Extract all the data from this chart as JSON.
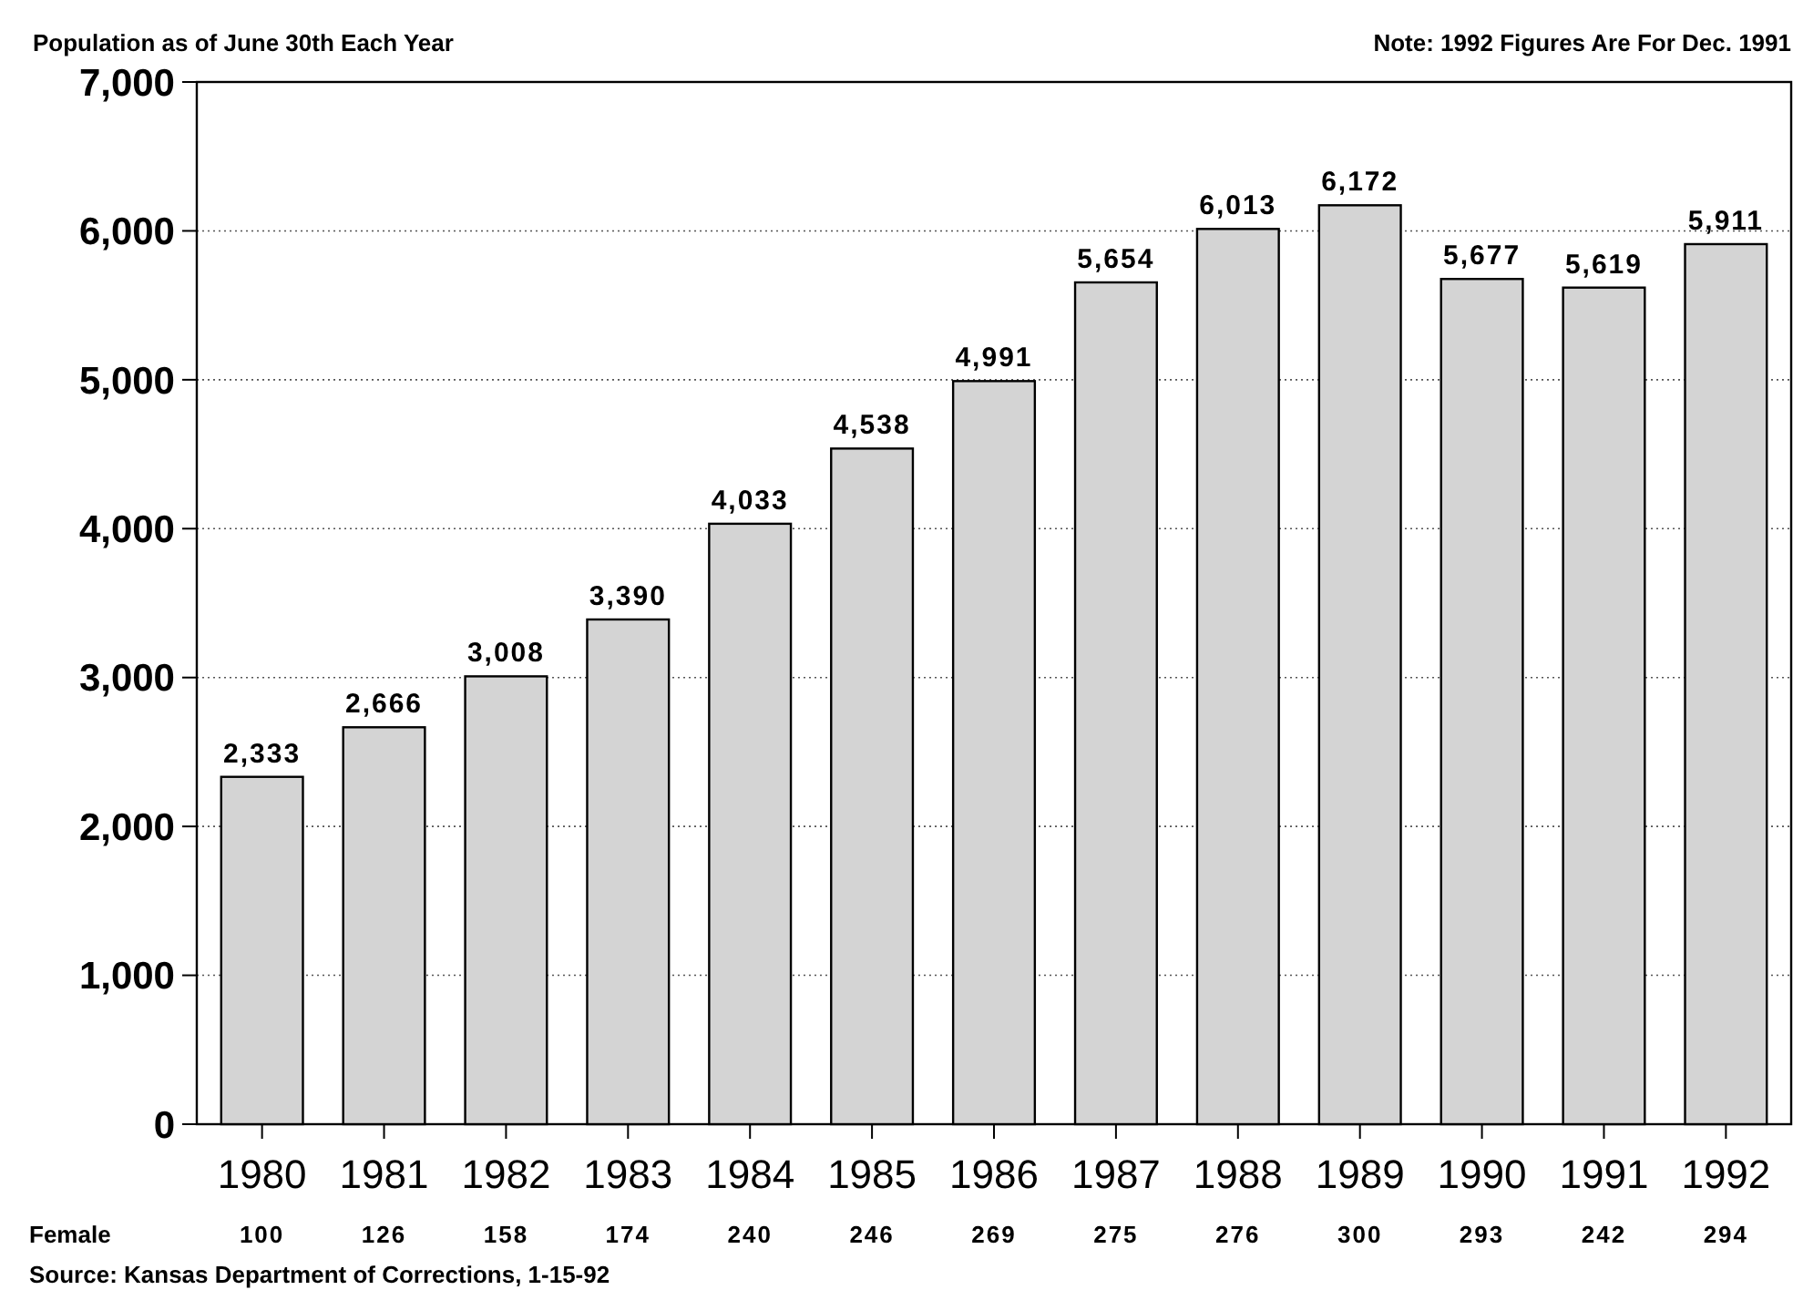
{
  "chart_data": {
    "type": "bar",
    "title": "Population as of June 30th Each Year",
    "categories": [
      "1980",
      "1981",
      "1982",
      "1983",
      "1984",
      "1985",
      "1986",
      "1987",
      "1988",
      "1989",
      "1990",
      "1991",
      "1992"
    ],
    "series": [
      {
        "color": "#d4d4d4",
        "values": [
          2333,
          2666,
          3008,
          3390,
          4033,
          4538,
          4991,
          5654,
          6013,
          6172,
          5677,
          5619,
          5911
        ],
        "value_labels": [
          "2,333",
          "2,666",
          "3,008",
          "3,390",
          "4,033",
          "4,538",
          "4,991",
          "5,654",
          "6,013",
          "6,172",
          "5,677",
          "5,619",
          "5,911"
        ]
      }
    ],
    "ylim": [
      0,
      7000
    ],
    "yticks": [
      {
        "value": 0,
        "label": "0"
      },
      {
        "value": 1000,
        "label": "1,000"
      },
      {
        "value": 2000,
        "label": "2,000"
      },
      {
        "value": 3000,
        "label": "3,000"
      },
      {
        "value": 4000,
        "label": "4,000"
      },
      {
        "value": 5000,
        "label": "5,000"
      },
      {
        "value": 6000,
        "label": "6,000"
      },
      {
        "value": 7000,
        "label": "7,000"
      }
    ],
    "grid": "y",
    "annotations": [
      "Note: 1992 Figures Are For Dec. 1991",
      "Source: Kansas Department of Corrections, 1-15-92",
      "Female",
      "100",
      "126",
      "158",
      "174",
      "240",
      "246",
      "269",
      "275",
      "276",
      "300",
      "293",
      "242",
      "294"
    ]
  }
}
